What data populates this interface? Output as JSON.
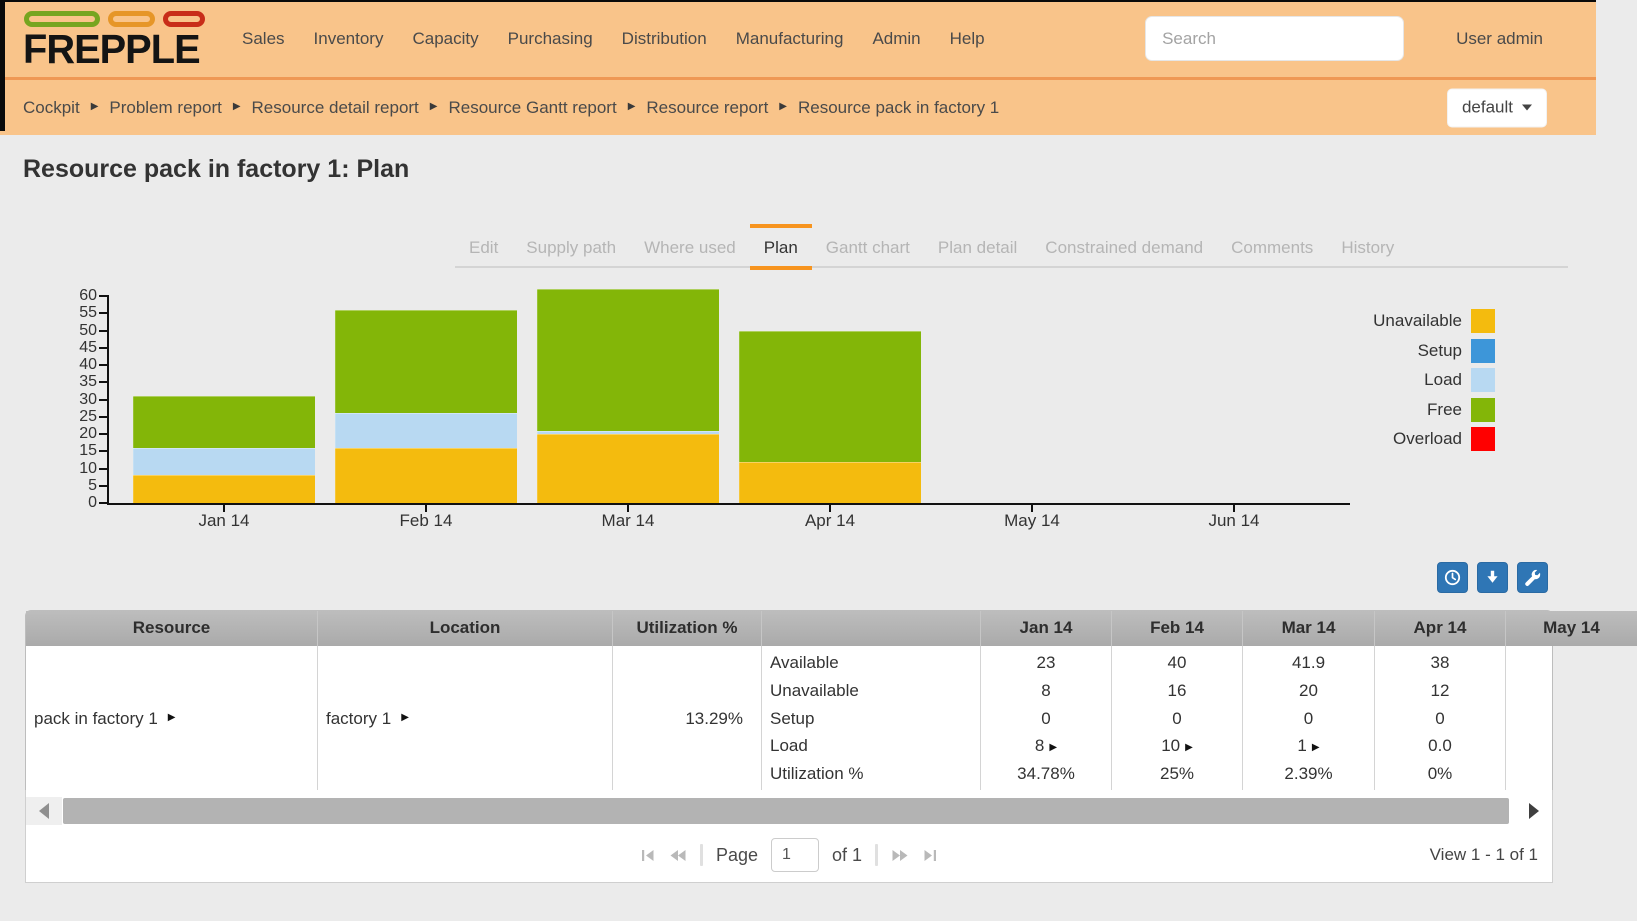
{
  "navbar": {
    "logo_text": "FREPPLE",
    "menu": [
      "Sales",
      "Inventory",
      "Capacity",
      "Purchasing",
      "Distribution",
      "Manufacturing",
      "Admin",
      "Help"
    ],
    "search": {
      "placeholder": "Search"
    },
    "user_label": "User admin"
  },
  "breadcrumbs": {
    "items": [
      "Cockpit",
      "Problem report",
      "Resource detail report",
      "Resource Gantt report",
      "Resource report",
      "Resource pack in factory 1"
    ],
    "scenario_button": "default"
  },
  "page_title": "Resource pack in factory 1: Plan",
  "tabs": [
    {
      "label": "Edit",
      "active": false
    },
    {
      "label": "Supply path",
      "active": false
    },
    {
      "label": "Where used",
      "active": false
    },
    {
      "label": "Plan",
      "active": true
    },
    {
      "label": "Gantt chart",
      "active": false
    },
    {
      "label": "Plan detail",
      "active": false
    },
    {
      "label": "Constrained demand",
      "active": false
    },
    {
      "label": "Comments",
      "active": false
    },
    {
      "label": "History",
      "active": false
    }
  ],
  "chart_data": {
    "type": "bar",
    "stacked": true,
    "categories": [
      "Jan 14",
      "Feb 14",
      "Mar 14",
      "Apr 14",
      "May 14",
      "Jun 14"
    ],
    "series": [
      {
        "name": "Unavailable",
        "color": "#f4bb0e",
        "values": [
          8,
          16,
          20,
          12,
          0,
          0
        ]
      },
      {
        "name": "Setup",
        "color": "#3d96d9",
        "values": [
          0,
          0,
          0,
          0,
          0,
          0
        ]
      },
      {
        "name": "Load",
        "color": "#b8d9f2",
        "values": [
          8,
          10,
          1,
          0,
          0,
          0
        ]
      },
      {
        "name": "Free",
        "color": "#83b608",
        "values": [
          15,
          30,
          40.9,
          38,
          0,
          0
        ]
      },
      {
        "name": "Overload",
        "color": "#ff0000",
        "values": [
          0,
          0,
          0,
          0,
          0,
          0
        ]
      }
    ],
    "title": "",
    "xlabel": "",
    "ylabel": "",
    "ylim": [
      0,
      60
    ],
    "ytick_step": 5,
    "grid": false,
    "legend_position": "right"
  },
  "toolbar": {
    "buttons": [
      {
        "name": "clock"
      },
      {
        "name": "download"
      },
      {
        "name": "wrench"
      }
    ]
  },
  "table": {
    "headers": [
      "Resource",
      "Location",
      "Utilization %",
      "",
      "Jan 14",
      "Feb 14",
      "Mar 14",
      "Apr 14",
      "May 14"
    ],
    "metric_labels": [
      "Available",
      "Unavailable",
      "Setup",
      "Load",
      "Utilization %"
    ],
    "rows": [
      {
        "resource": "pack in factory 1",
        "location": "factory 1",
        "utilization": "13.29%",
        "periods": [
          {
            "name": "Jan 14",
            "values": [
              "23",
              "8",
              "0",
              "8",
              "34.78%"
            ],
            "load_drill": true
          },
          {
            "name": "Feb 14",
            "values": [
              "40",
              "16",
              "0",
              "10",
              "25%"
            ],
            "load_drill": true
          },
          {
            "name": "Mar 14",
            "values": [
              "41.9",
              "20",
              "0",
              "1",
              "2.39%"
            ],
            "load_drill": true
          },
          {
            "name": "Apr 14",
            "values": [
              "38",
              "12",
              "0",
              "0.0",
              "0%"
            ],
            "load_drill": false
          },
          {
            "name": "May 14",
            "values": [
              "",
              "",
              "",
              "",
              ""
            ],
            "load_drill": false
          }
        ]
      }
    ]
  },
  "pager": {
    "page_label": "Page",
    "current_page": "1",
    "of_label": "of 1",
    "view_status": "View 1 - 1 of 1"
  }
}
